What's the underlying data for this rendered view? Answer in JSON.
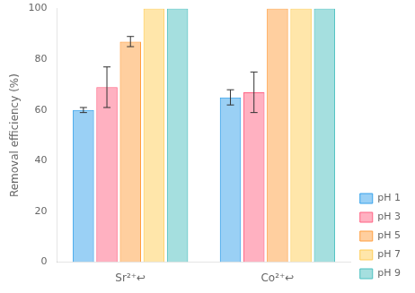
{
  "chart_data": {
    "type": "bar",
    "categories": [
      "Sr²⁺↩",
      "Co²⁺↩"
    ],
    "series": [
      {
        "name": "pH 1",
        "values": [
          60,
          65
        ],
        "errors": [
          1.0,
          3.0
        ]
      },
      {
        "name": "pH 3",
        "values": [
          69,
          67
        ],
        "errors": [
          8.0,
          8.0
        ]
      },
      {
        "name": "pH 5",
        "values": [
          87,
          100
        ],
        "errors": [
          2.0,
          0
        ]
      },
      {
        "name": "pH 7",
        "values": [
          100,
          100
        ],
        "errors": [
          0,
          0
        ]
      },
      {
        "name": "pH 9",
        "values": [
          100,
          100
        ],
        "errors": [
          0,
          0
        ]
      }
    ],
    "ylabel": "Removal efficiency (%)",
    "ylim": [
      0,
      100
    ],
    "yticks": [
      0,
      20,
      40,
      60,
      80,
      100
    ],
    "grid": false,
    "legend": "lower right"
  }
}
